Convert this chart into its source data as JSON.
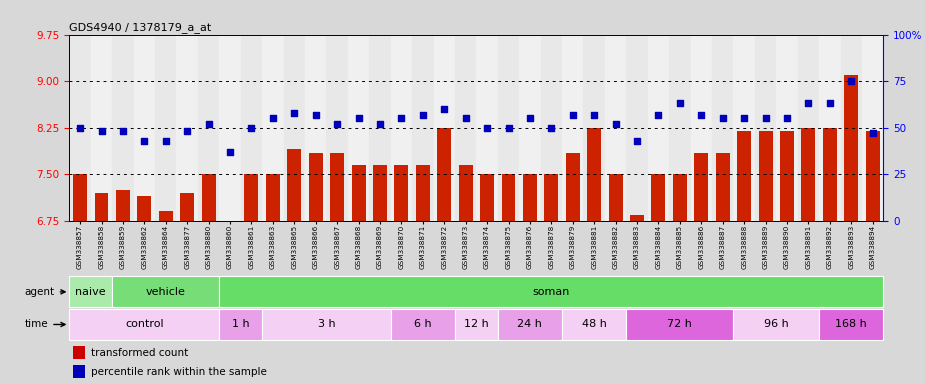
{
  "title": "GDS4940 / 1378179_a_at",
  "samples": [
    "GSM338857",
    "GSM338858",
    "GSM338859",
    "GSM338862",
    "GSM338864",
    "GSM338877",
    "GSM338880",
    "GSM338860",
    "GSM338861",
    "GSM338863",
    "GSM338865",
    "GSM338866",
    "GSM338867",
    "GSM338868",
    "GSM338869",
    "GSM338870",
    "GSM338871",
    "GSM338872",
    "GSM338873",
    "GSM338874",
    "GSM338875",
    "GSM338876",
    "GSM338878",
    "GSM338879",
    "GSM338881",
    "GSM338882",
    "GSM338883",
    "GSM338884",
    "GSM338885",
    "GSM338886",
    "GSM338887",
    "GSM338888",
    "GSM338889",
    "GSM338890",
    "GSM338891",
    "GSM338892",
    "GSM338893",
    "GSM338894"
  ],
  "bar_values": [
    7.5,
    7.2,
    7.25,
    7.15,
    6.9,
    7.2,
    7.5,
    6.65,
    7.5,
    7.5,
    7.9,
    7.85,
    7.85,
    7.65,
    7.65,
    7.65,
    7.65,
    8.25,
    7.65,
    7.5,
    7.5,
    7.5,
    7.5,
    7.85,
    8.25,
    7.5,
    6.85,
    7.5,
    7.5,
    7.85,
    7.85,
    8.2,
    8.2,
    8.2,
    8.25,
    8.25,
    9.1,
    8.2
  ],
  "dot_values": [
    50,
    48,
    48,
    43,
    43,
    48,
    52,
    37,
    50,
    55,
    58,
    57,
    52,
    55,
    52,
    55,
    57,
    60,
    55,
    50,
    50,
    55,
    50,
    57,
    57,
    52,
    43,
    57,
    63,
    57,
    55,
    55,
    55,
    55,
    63,
    63,
    75,
    47
  ],
  "bar_color": "#cc2200",
  "dot_color": "#0000bb",
  "ylim_left": [
    6.75,
    9.75
  ],
  "ylim_right": [
    0,
    100
  ],
  "yticks_left": [
    6.75,
    7.5,
    8.25,
    9.0,
    9.75
  ],
  "yticks_right": [
    0,
    25,
    50,
    75,
    100
  ],
  "ytick_labels_right": [
    "0",
    "25",
    "50",
    "75",
    "100%"
  ],
  "hlines": [
    7.5,
    8.25,
    9.0
  ],
  "agent_groups_raw": [
    {
      "label": "naive",
      "start": 0,
      "end": 2,
      "color": "#aaeaaa"
    },
    {
      "label": "vehicle",
      "start": 2,
      "end": 7,
      "color": "#77dd77"
    },
    {
      "label": "soman",
      "start": 7,
      "end": 38,
      "color": "#66dd66"
    }
  ],
  "time_groups_raw": [
    {
      "label": "control",
      "start": 0,
      "end": 7,
      "color": "#f5d0f5"
    },
    {
      "label": "1 h",
      "start": 7,
      "end": 9,
      "color": "#e8a0e8"
    },
    {
      "label": "3 h",
      "start": 9,
      "end": 15,
      "color": "#f5d0f5"
    },
    {
      "label": "6 h",
      "start": 15,
      "end": 18,
      "color": "#e8a0e8"
    },
    {
      "label": "12 h",
      "start": 18,
      "end": 20,
      "color": "#f5d0f5"
    },
    {
      "label": "24 h",
      "start": 20,
      "end": 23,
      "color": "#e8a0e8"
    },
    {
      "label": "48 h",
      "start": 23,
      "end": 26,
      "color": "#f5d0f5"
    },
    {
      "label": "72 h",
      "start": 26,
      "end": 31,
      "color": "#dd66dd"
    },
    {
      "label": "96 h",
      "start": 31,
      "end": 35,
      "color": "#f5d0f5"
    },
    {
      "label": "168 h",
      "start": 35,
      "end": 38,
      "color": "#dd66dd"
    }
  ],
  "background_color": "#d8d8d8",
  "plot_bg": "#ffffff",
  "col_bg_even": "#e8e8e8",
  "col_bg_odd": "#f0f0f0"
}
